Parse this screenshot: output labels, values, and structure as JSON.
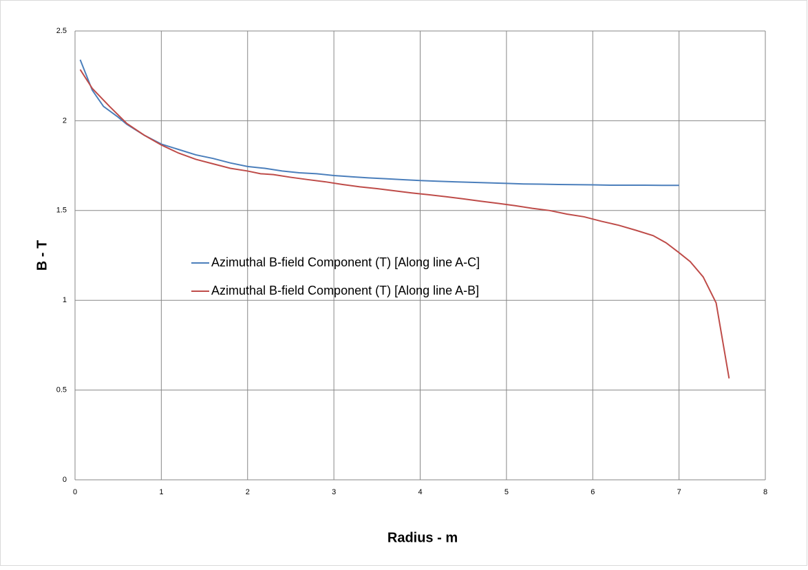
{
  "chart_data": {
    "type": "line",
    "xlabel": "Radius - m",
    "ylabel": "B - T",
    "xlim": [
      0,
      8
    ],
    "xticks": [
      0,
      1,
      2,
      3,
      4,
      5,
      6,
      7,
      8
    ],
    "ylim": [
      0,
      2.5
    ],
    "yticks": [
      0,
      0.5,
      1,
      1.5,
      2,
      2.5
    ],
    "grid": true,
    "legend": "center-left",
    "series": [
      {
        "name": "Azimuthal B-field Component (T) [Along line A-C]",
        "color": "#4a7ebb",
        "x": [
          0.06,
          0.2,
          0.33,
          0.5,
          0.6,
          0.8,
          1.0,
          1.2,
          1.4,
          1.6,
          1.8,
          2.0,
          2.2,
          2.4,
          2.6,
          2.8,
          3.0,
          3.2,
          3.4,
          3.6,
          3.8,
          4.0,
          4.2,
          4.4,
          4.6,
          4.8,
          5.0,
          5.2,
          5.4,
          5.6,
          5.8,
          6.0,
          6.2,
          6.4,
          6.6,
          6.8,
          7.0
        ],
        "values": [
          2.34,
          2.17,
          2.08,
          2.02,
          1.98,
          1.92,
          1.87,
          1.84,
          1.81,
          1.79,
          1.765,
          1.745,
          1.735,
          1.72,
          1.71,
          1.705,
          1.695,
          1.688,
          1.682,
          1.677,
          1.672,
          1.667,
          1.663,
          1.66,
          1.657,
          1.654,
          1.651,
          1.648,
          1.647,
          1.645,
          1.644,
          1.643,
          1.641,
          1.641,
          1.641,
          1.64,
          1.64
        ]
      },
      {
        "name": "Azimuthal B-field Component (T) [Along line A-B]",
        "color": "#be4b48",
        "x": [
          0.06,
          0.2,
          0.4,
          0.6,
          0.8,
          1.0,
          1.2,
          1.4,
          1.6,
          1.8,
          2.0,
          2.15,
          2.3,
          2.5,
          2.7,
          2.9,
          3.1,
          3.3,
          3.5,
          3.7,
          3.9,
          4.1,
          4.3,
          4.5,
          4.7,
          4.9,
          5.1,
          5.3,
          5.5,
          5.7,
          5.9,
          6.1,
          6.3,
          6.5,
          6.7,
          6.85,
          7.0,
          7.13,
          7.28,
          7.43,
          7.58
        ],
        "values": [
          2.285,
          2.18,
          2.08,
          1.985,
          1.92,
          1.865,
          1.82,
          1.785,
          1.76,
          1.735,
          1.72,
          1.705,
          1.7,
          1.685,
          1.672,
          1.66,
          1.645,
          1.632,
          1.622,
          1.61,
          1.598,
          1.588,
          1.577,
          1.565,
          1.552,
          1.54,
          1.527,
          1.512,
          1.5,
          1.48,
          1.465,
          1.44,
          1.418,
          1.39,
          1.36,
          1.32,
          1.265,
          1.215,
          1.13,
          0.985,
          0.565
        ]
      }
    ]
  }
}
